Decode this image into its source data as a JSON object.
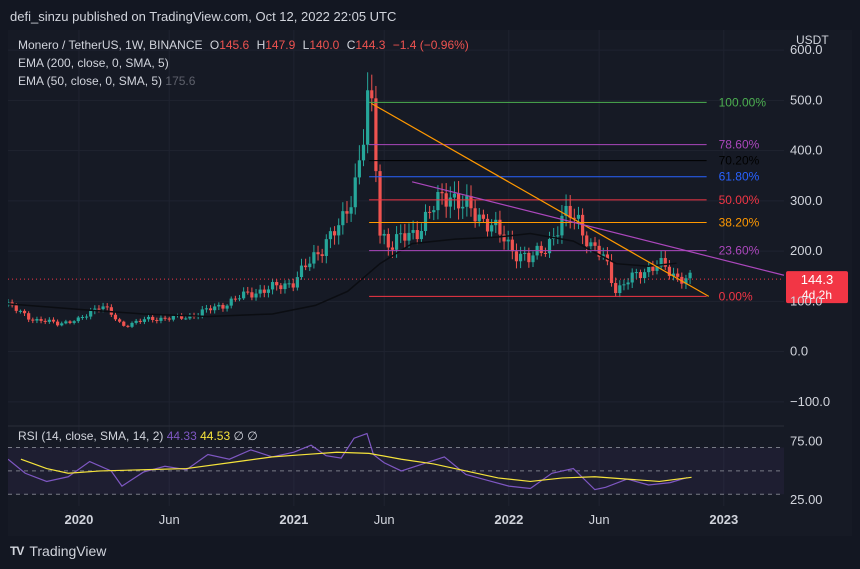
{
  "publisher_line": "defi_sinzu published on TradingView.com, Oct 12, 2022 22:05 UTC",
  "brand": "TradingView",
  "legend": {
    "symbol": "Monero / TetherUS, 1W, BINANCE",
    "o_label": "O",
    "o": "145.6",
    "h_label": "H",
    "h": "147.9",
    "l_label": "L",
    "l": "140.0",
    "c_label": "C",
    "c": "144.3",
    "change": "−1.4 (−0.96%)",
    "ema200": "EMA (200, close, 0, SMA, 5)",
    "ema50": "EMA (50, close, 0, SMA, 5)",
    "ema50_value": "175.6"
  },
  "rsi_legend": {
    "label": "RSI (14, close, SMA, 14, 2)",
    "rsi_value": "44.33",
    "sma_value": "44.53",
    "icons": "∅  ∅"
  },
  "colors": {
    "background": "#131722",
    "up": "#26a69a",
    "down": "#ef5350",
    "trendline": "#ff9800",
    "resistance": "#ab47bc",
    "rsi_line": "#7e57c2",
    "rsi_sma": "#f5e33b",
    "price_tag": "#f23645"
  },
  "chart_data": [
    {
      "type": "candlestick",
      "title": "Monero / TetherUS, 1W, BINANCE",
      "y_unit": "USDT",
      "ylim": [
        -140,
        640
      ],
      "y_ticks": [
        -100,
        0,
        100,
        200,
        300,
        400,
        500,
        600
      ],
      "y_tick_labels": [
        "−100.0",
        "0.0",
        "100.0",
        "200.0",
        "300.0",
        "400.0",
        "500.0",
        "600.0"
      ],
      "x_tick_labels": [
        "2020",
        "Jun",
        "2021",
        "Jun",
        "2022",
        "Jun",
        "2023"
      ],
      "x_tick_times": [
        2020.0,
        2020.42,
        2021.0,
        2021.42,
        2022.0,
        2022.42,
        2023.0
      ],
      "xlim": [
        2019.67,
        2023.28
      ],
      "last_price": "144.3",
      "countdown": "4d 2h",
      "fib_levels": [
        {
          "label": "100.00%",
          "price": 496,
          "color": "#4caf50"
        },
        {
          "label": "78.60%",
          "price": 412,
          "color": "#ab47bc"
        },
        {
          "label": "70.20%",
          "price": 380,
          "color": "#000000"
        },
        {
          "label": "61.80%",
          "price": 348,
          "color": "#2962ff"
        },
        {
          "label": "50.00%",
          "price": 302,
          "color": "#f23645"
        },
        {
          "label": "38.20%",
          "price": 257,
          "color": "#ff9800"
        },
        {
          "label": "23.60%",
          "price": 201,
          "color": "#ab47bc"
        },
        {
          "label": "0.00%",
          "price": 110,
          "color": "#f23645"
        }
      ],
      "fib_start": 2021.35,
      "fib_end": 2022.92,
      "trendlines": [
        {
          "name": "descending support-to-resistance",
          "color": "#ff9800",
          "x": [
            2021.36,
            2022.93
          ],
          "y": [
            494,
            110
          ]
        },
        {
          "name": "descending resistance",
          "color": "#ab47bc",
          "x": [
            2021.55,
            2023.28
          ],
          "y": [
            338,
            152
          ]
        }
      ],
      "ema50_points": {
        "x": [
          2019.67,
          2020.0,
          2020.3,
          2020.6,
          2020.9,
          2021.1,
          2021.25,
          2021.4,
          2021.55,
          2021.75,
          2021.95,
          2022.1,
          2022.3,
          2022.5,
          2022.65,
          2022.78
        ],
        "y": [
          95,
          84,
          75,
          70,
          75,
          92,
          120,
          175,
          215,
          224,
          228,
          235,
          220,
          175,
          170,
          176
        ]
      },
      "candles_anchor": {
        "t": [
          2019.67,
          2019.8,
          2019.9,
          2020.0,
          2020.1,
          2020.2,
          2020.3,
          2020.35,
          2020.5,
          2020.65,
          2020.8,
          2020.9,
          2021.0,
          2021.08,
          2021.15,
          2021.22,
          2021.28,
          2021.32,
          2021.34,
          2021.37,
          2021.4,
          2021.45,
          2021.55,
          2021.65,
          2021.72,
          2021.8,
          2021.9,
          2022.0,
          2022.1,
          2022.2,
          2022.28,
          2022.32,
          2022.38,
          2022.45,
          2022.5,
          2022.55,
          2022.62,
          2022.7,
          2022.78,
          2022.85
        ],
        "p": [
          92,
          62,
          57,
          62,
          95,
          52,
          62,
          66,
          68,
          90,
          117,
          126,
          140,
          180,
          222,
          248,
          330,
          418,
          495,
          455,
          238,
          215,
          232,
          285,
          320,
          283,
          262,
          210,
          180,
          226,
          276,
          270,
          205,
          185,
          120,
          138,
          162,
          172,
          150,
          144
        ]
      }
    },
    {
      "type": "line",
      "title": "RSI (14, close, SMA, 14, 2)",
      "ylim": [
        20,
        85
      ],
      "y_ticks": [
        25,
        75
      ],
      "y_tick_labels": [
        "25.00",
        "75.00"
      ],
      "bands": [
        70,
        50,
        30
      ],
      "series": [
        {
          "name": "RSI",
          "color": "#7e57c2",
          "x": [
            2019.67,
            2019.75,
            2019.85,
            2019.95,
            2020.05,
            2020.15,
            2020.2,
            2020.3,
            2020.4,
            2020.5,
            2020.6,
            2020.7,
            2020.8,
            2020.9,
            2021.0,
            2021.08,
            2021.15,
            2021.22,
            2021.28,
            2021.34,
            2021.37,
            2021.42,
            2021.5,
            2021.6,
            2021.7,
            2021.8,
            2021.9,
            2022.0,
            2022.1,
            2022.2,
            2022.3,
            2022.4,
            2022.45,
            2022.55,
            2022.65,
            2022.75,
            2022.83
          ],
          "y": [
            60,
            48,
            41,
            45,
            58,
            50,
            37,
            49,
            54,
            51,
            64,
            60,
            68,
            62,
            66,
            72,
            63,
            61,
            78,
            82,
            64,
            57,
            50,
            56,
            62,
            47,
            42,
            37,
            35,
            48,
            52,
            34,
            36,
            43,
            38,
            40,
            44.33
          ]
        },
        {
          "name": "SMA",
          "color": "#f5e33b",
          "x": [
            2019.73,
            2019.85,
            2019.95,
            2020.1,
            2020.3,
            2020.5,
            2020.7,
            2020.9,
            2021.05,
            2021.2,
            2021.35,
            2021.5,
            2021.65,
            2021.8,
            2021.95,
            2022.1,
            2022.25,
            2022.4,
            2022.55,
            2022.7,
            2022.85
          ],
          "y": [
            60,
            52,
            48,
            50,
            51,
            52,
            57,
            62,
            64,
            66,
            65,
            60,
            56,
            50,
            44,
            41,
            44,
            45,
            43,
            41,
            44.53
          ]
        }
      ]
    }
  ]
}
